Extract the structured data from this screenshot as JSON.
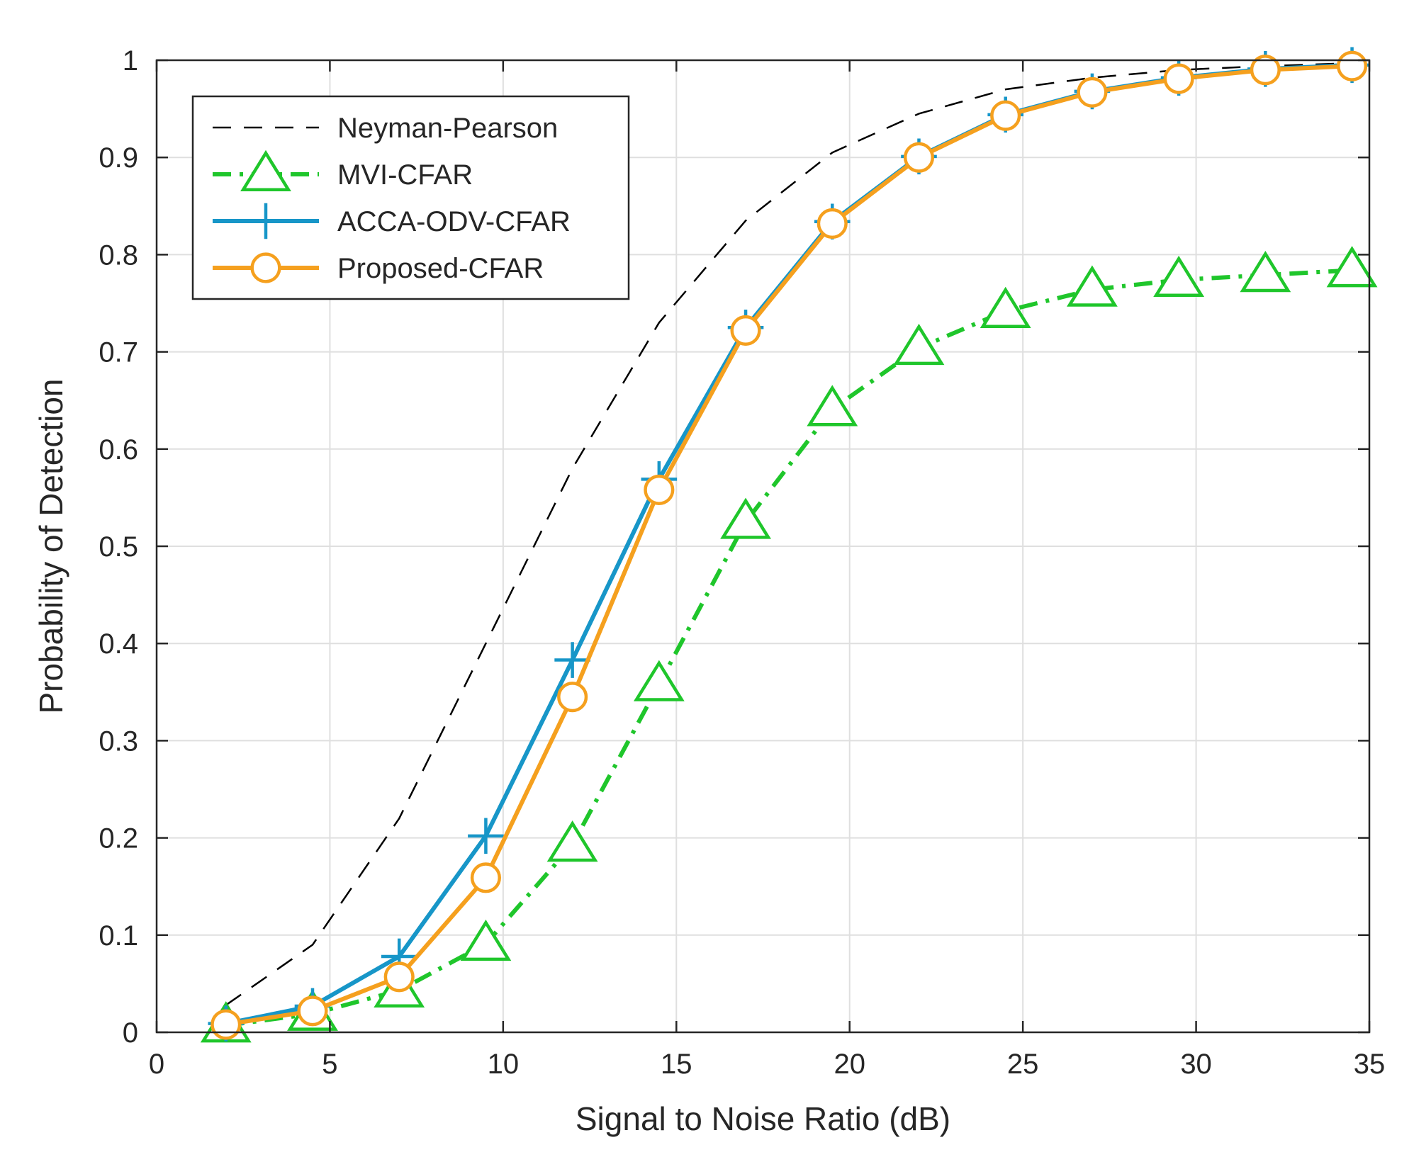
{
  "chart_data": {
    "type": "line",
    "title": "",
    "xlabel": "Signal to Noise Ratio (dB)",
    "ylabel": "Probability of Detection",
    "xlim": [
      0,
      35
    ],
    "ylim": [
      0,
      1
    ],
    "xticks": [
      0,
      5,
      10,
      15,
      20,
      25,
      30,
      35
    ],
    "yticks": [
      0,
      0.1,
      0.2,
      0.3,
      0.4,
      0.5,
      0.6,
      0.7,
      0.8,
      0.9,
      1
    ],
    "ytick_labels": [
      "0",
      "0.1",
      "0.2",
      "0.3",
      "0.4",
      "0.5",
      "0.6",
      "0.7",
      "0.8",
      "0.9",
      "1"
    ],
    "grid": true,
    "legend_position": "top-left",
    "x": [
      2,
      4.5,
      7,
      9.5,
      12,
      14.5,
      17,
      19.5,
      22,
      24.5,
      27,
      29.5,
      32,
      34.5
    ],
    "series": [
      {
        "name": "Neyman-Pearson",
        "color": "#000000",
        "line_style": "dashed",
        "marker": "none",
        "values": [
          0.028,
          0.09,
          0.22,
          0.4,
          0.58,
          0.73,
          0.835,
          0.905,
          0.945,
          0.97,
          0.982,
          0.99,
          0.994,
          0.997
        ]
      },
      {
        "name": "MVI-CFAR",
        "color": "#1fc62b",
        "line_style": "dash-dot",
        "marker": "triangle",
        "values": [
          0.007,
          0.019,
          0.043,
          0.091,
          0.193,
          0.358,
          0.525,
          0.641,
          0.704,
          0.742,
          0.764,
          0.774,
          0.779,
          0.784
        ]
      },
      {
        "name": "ACCA-ODV-CFAR",
        "color": "#1796c8",
        "line_style": "solid",
        "marker": "plus",
        "values": [
          0.009,
          0.027,
          0.078,
          0.202,
          0.383,
          0.569,
          0.725,
          0.834,
          0.901,
          0.944,
          0.968,
          0.982,
          0.991,
          0.995
        ]
      },
      {
        "name": "Proposed-CFAR",
        "color": "#f5a01e",
        "line_style": "solid",
        "marker": "circle",
        "values": [
          0.008,
          0.022,
          0.057,
          0.159,
          0.345,
          0.558,
          0.722,
          0.832,
          0.9,
          0.943,
          0.967,
          0.981,
          0.99,
          0.994
        ]
      }
    ]
  }
}
